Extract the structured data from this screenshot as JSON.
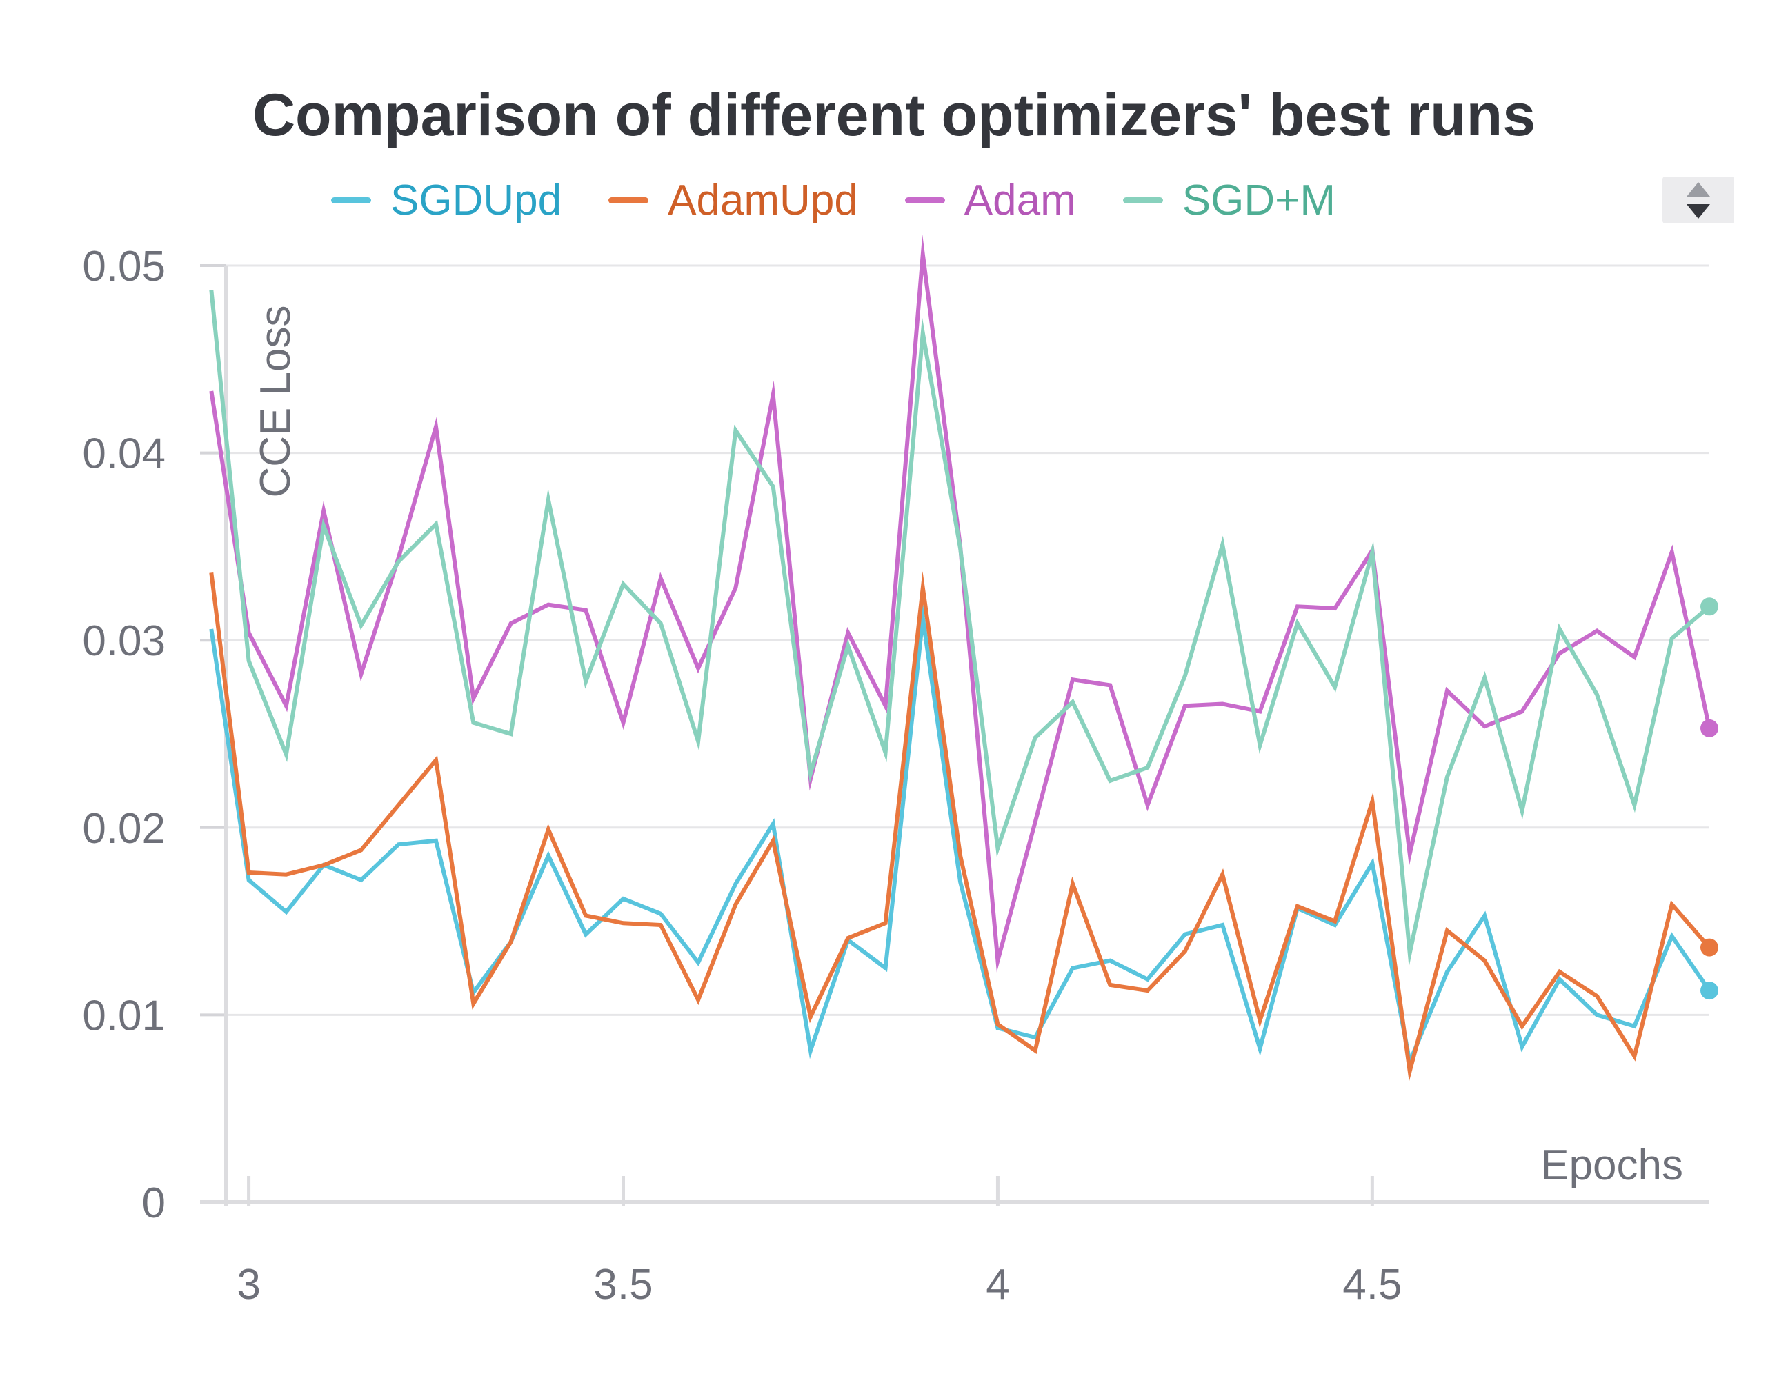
{
  "chart_data": {
    "type": "line",
    "title": "Comparison of different optimizers' best runs",
    "xlabel": "Epochs",
    "ylabel": "CCE Loss",
    "xlim": [
      2.97,
      4.95
    ],
    "ylim": [
      0,
      0.05
    ],
    "x_ticks": [
      "3",
      "3.5",
      "4",
      "4.5"
    ],
    "y_ticks": [
      "0",
      "0.01",
      "0.02",
      "0.03",
      "0.04",
      "0.05"
    ],
    "grid": true,
    "legend_position": "top",
    "x": [
      2.95,
      3.0,
      3.05,
      3.1,
      3.15,
      3.2,
      3.25,
      3.3,
      3.35,
      3.4,
      3.45,
      3.5,
      3.55,
      3.6,
      3.65,
      3.7,
      3.75,
      3.8,
      3.85,
      3.9,
      3.95,
      4.0,
      4.05,
      4.1,
      4.15,
      4.2,
      4.25,
      4.3,
      4.35,
      4.4,
      4.45,
      4.5,
      4.55,
      4.6,
      4.65,
      4.7,
      4.75,
      4.8,
      4.85,
      4.9,
      4.95
    ],
    "series": [
      {
        "name": "SGDUpd",
        "color": "#58c4dd",
        "values": [
          0.0306,
          0.0172,
          0.0155,
          0.018,
          0.0172,
          0.0191,
          0.0193,
          0.0112,
          0.0139,
          0.0185,
          0.0143,
          0.0162,
          0.0154,
          0.0128,
          0.017,
          0.0202,
          0.0081,
          0.014,
          0.0125,
          0.0312,
          0.0171,
          0.0093,
          0.0088,
          0.0125,
          0.0129,
          0.0119,
          0.0143,
          0.0148,
          0.0082,
          0.0157,
          0.0148,
          0.0181,
          0.0075,
          0.0123,
          0.0153,
          0.0083,
          0.0119,
          0.01,
          0.0094,
          0.0142,
          0.0113
        ]
      },
      {
        "name": "AdamUpd",
        "color": "#e8773e",
        "values": [
          0.0336,
          0.0176,
          0.0175,
          0.018,
          0.0188,
          0.0212,
          0.0236,
          0.0106,
          0.0139,
          0.0199,
          0.0153,
          0.0149,
          0.0148,
          0.0108,
          0.0159,
          0.0193,
          0.0099,
          0.0141,
          0.0149,
          0.0328,
          0.0185,
          0.0095,
          0.0081,
          0.017,
          0.0116,
          0.0113,
          0.0134,
          0.0175,
          0.0097,
          0.0158,
          0.015,
          0.0214,
          0.007,
          0.0145,
          0.0129,
          0.0094,
          0.0123,
          0.011,
          0.0078,
          0.0159,
          0.0136
        ]
      },
      {
        "name": "Adam",
        "color": "#c86bcb",
        "values": [
          0.0433,
          0.0304,
          0.0265,
          0.0369,
          0.0282,
          0.0344,
          0.0414,
          0.0269,
          0.0309,
          0.0319,
          0.0316,
          0.0256,
          0.0333,
          0.0285,
          0.0328,
          0.0431,
          0.0226,
          0.0304,
          0.0265,
          0.0506,
          0.035,
          0.0129,
          0.0203,
          0.0279,
          0.0276,
          0.0212,
          0.0265,
          0.0266,
          0.0262,
          0.0318,
          0.0317,
          0.0348,
          0.0186,
          0.0273,
          0.0254,
          0.0262,
          0.0293,
          0.0305,
          0.0291,
          0.0347,
          0.0253
        ]
      },
      {
        "name": "SGD+M",
        "color": "#88d1bd",
        "values": [
          0.0487,
          0.0289,
          0.0239,
          0.0361,
          0.0308,
          0.0342,
          0.0362,
          0.0256,
          0.025,
          0.0375,
          0.0278,
          0.033,
          0.0309,
          0.0246,
          0.0412,
          0.0382,
          0.0229,
          0.0297,
          0.024,
          0.0464,
          0.0349,
          0.0189,
          0.0248,
          0.0267,
          0.0225,
          0.0232,
          0.0281,
          0.0351,
          0.0244,
          0.0309,
          0.0275,
          0.0347,
          0.0133,
          0.0227,
          0.028,
          0.0209,
          0.0306,
          0.0271,
          0.0212,
          0.0301,
          0.0318
        ]
      }
    ]
  },
  "legend_items": [
    {
      "label": "SGDUpd",
      "color": "#58c4dd",
      "text_color": "#2aa3c6"
    },
    {
      "label": "AdamUpd",
      "color": "#e8773e",
      "text_color": "#cf5f27"
    },
    {
      "label": "Adam",
      "color": "#c86bcb",
      "text_color": "#b457b7"
    },
    {
      "label": "SGD+M",
      "color": "#88d1bd",
      "text_color": "#4fae94"
    }
  ],
  "legend_scroll_icons": [
    "chevron-up-icon",
    "chevron-down-icon"
  ]
}
